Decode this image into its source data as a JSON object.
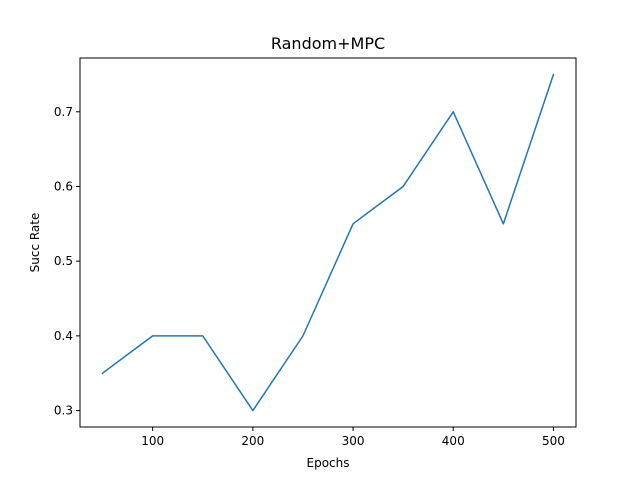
{
  "chart_data": {
    "type": "line",
    "title": "Random+MPC",
    "xlabel": "Epochs",
    "ylabel": "Succ Rate",
    "xlim": [
      27.5,
      522.5
    ],
    "ylim": [
      0.278,
      0.772
    ],
    "xticks": [
      100,
      200,
      300,
      400,
      500
    ],
    "yticks": [
      0.3,
      0.4,
      0.5,
      0.6,
      0.7
    ],
    "xtick_labels": [
      "100",
      "200",
      "300",
      "400",
      "500"
    ],
    "ytick_labels": [
      "0.3",
      "0.4",
      "0.5",
      "0.6",
      "0.7"
    ],
    "grid": false,
    "legend": "none",
    "series": [
      {
        "color": "#1f77b4",
        "x": [
          50,
          100,
          150,
          200,
          250,
          300,
          350,
          400,
          450,
          500
        ],
        "y": [
          0.35,
          0.4,
          0.4,
          0.3,
          0.4,
          0.55,
          0.6,
          0.7,
          0.55,
          0.75
        ]
      }
    ]
  }
}
